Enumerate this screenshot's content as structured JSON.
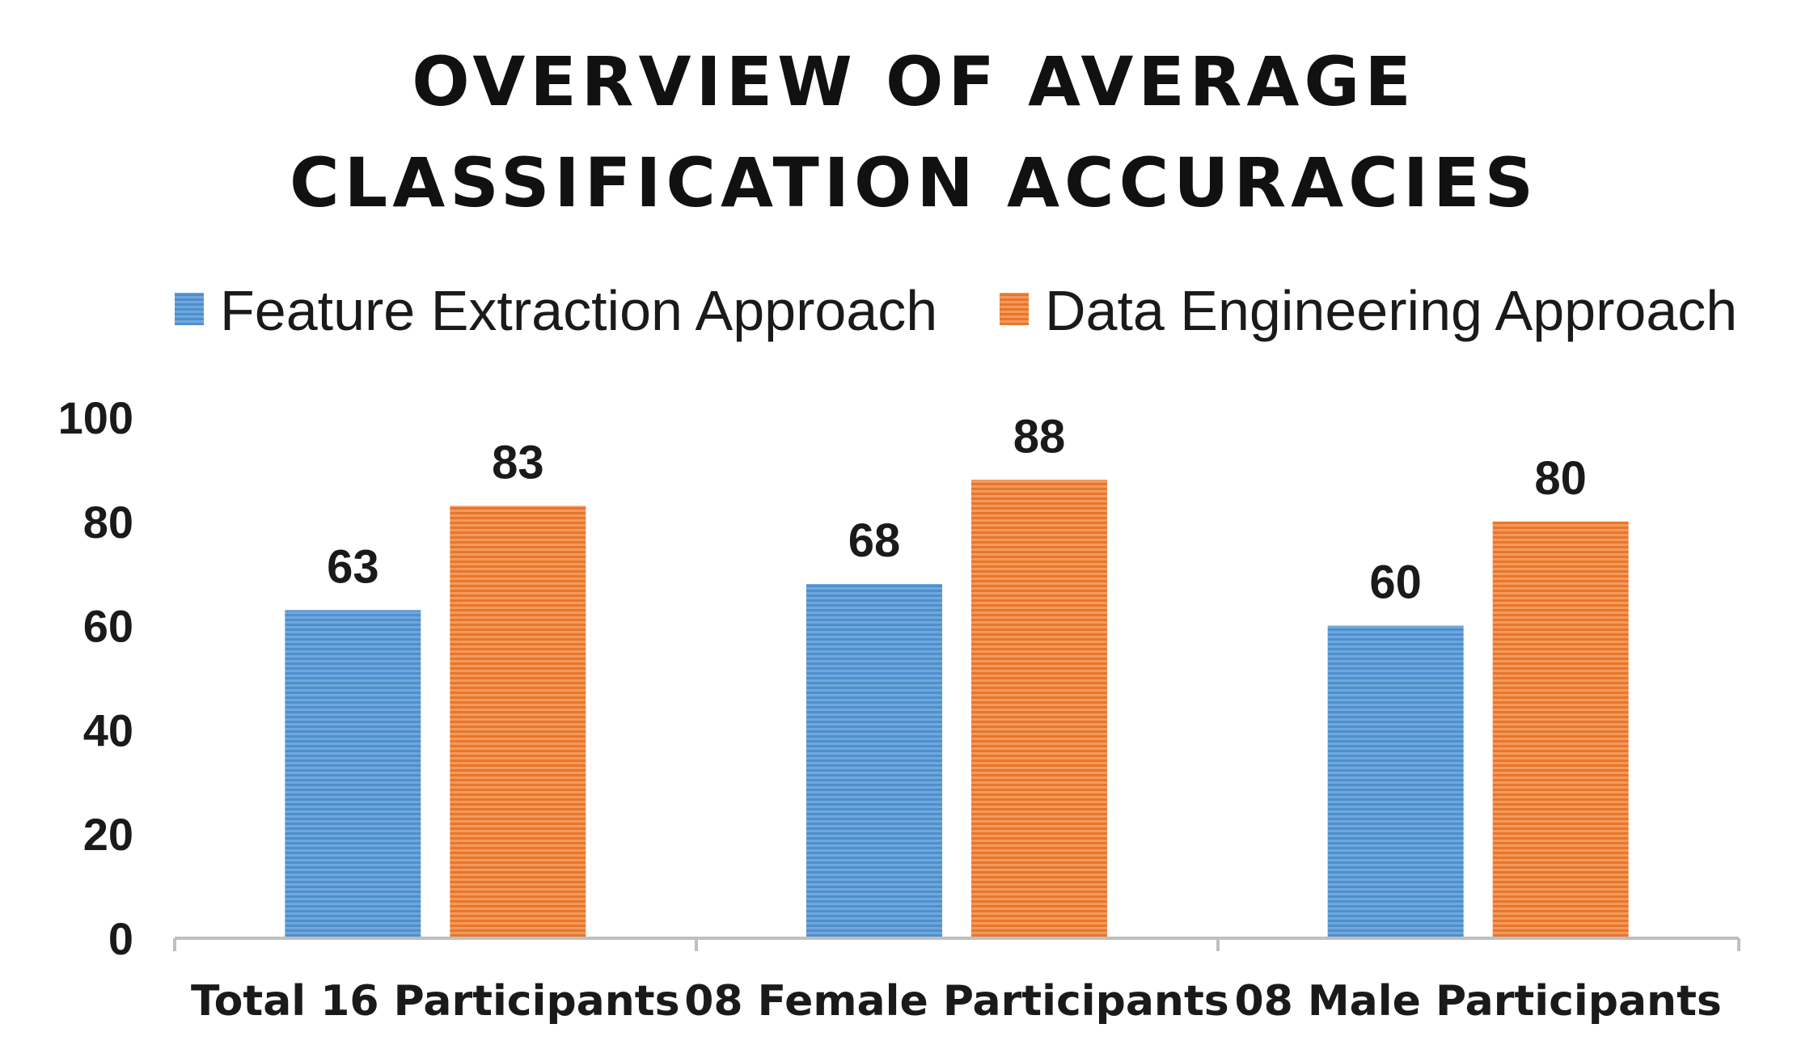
{
  "chart_data": {
    "type": "bar",
    "title_lines": [
      "OVERVIEW OF AVERAGE",
      "CLASSIFICATION ACCURACIES"
    ],
    "categories": [
      "Total 16 Participants",
      "08 Female Participants",
      "08 Male Participants"
    ],
    "series": [
      {
        "name": "Feature Extraction Approach",
        "values": [
          63,
          68,
          60
        ],
        "color": "#5b9bd5"
      },
      {
        "name": "Data Engineering Approach",
        "values": [
          83,
          88,
          80
        ],
        "color": "#ed7d31"
      }
    ],
    "y_ticks": [
      "0",
      "20",
      "40",
      "60",
      "80",
      "100"
    ],
    "ylim": [
      0,
      100
    ],
    "xlabel": "",
    "ylabel": "",
    "legend_position": "top",
    "grid": false
  }
}
